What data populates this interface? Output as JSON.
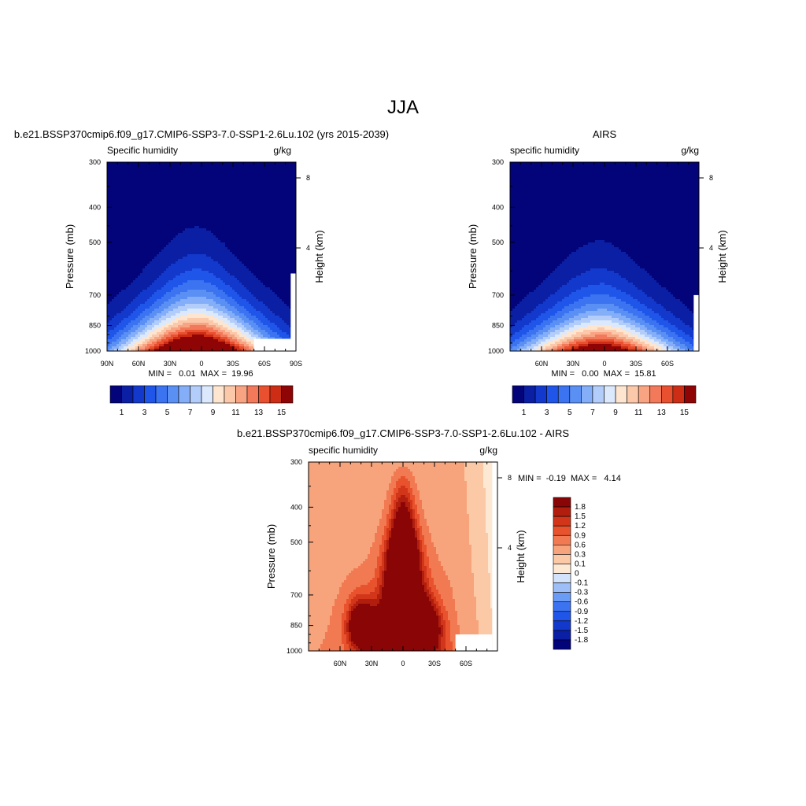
{
  "figure": {
    "title": "JJA"
  },
  "palettes": {
    "abs": [
      "#03037a",
      "#0a1fa3",
      "#1339cc",
      "#1f55e8",
      "#3b73f0",
      "#5a8ff4",
      "#84aef7",
      "#b3cdfa",
      "#dce9fc",
      "#fde5d0",
      "#fbc8aa",
      "#f8a482",
      "#f3795b",
      "#e9502f",
      "#cd2d14",
      "#8f0505"
    ],
    "diff": [
      "#03037a",
      "#0a1fa3",
      "#1339cc",
      "#1f55e8",
      "#3b73f0",
      "#6a9bf5",
      "#9ebef8",
      "#d2e3fb",
      "#fde8d4",
      "#fbc9a6",
      "#f7a47c",
      "#f27a52",
      "#e8532d",
      "#d2361a",
      "#b11e0e",
      "#8a0606"
    ]
  },
  "chart_data": [
    {
      "type": "contour",
      "title": "b.e21.BSSP370cmip6.f09_g17.CMIP6-SSP3-7.0-SSP1-2.6Lu.102 (yrs 2015-2039)",
      "field_label": "Specific humidity",
      "units": "g/kg",
      "ylabel": "Pressure (mb)",
      "y2label": "Height (km)",
      "x_ticks": [
        "90N",
        "60N",
        "30N",
        "0",
        "30S",
        "60S",
        "90S"
      ],
      "x_tick_values": [
        90,
        60,
        30,
        0,
        -30,
        -60,
        -90
      ],
      "x_range": [
        90,
        -90
      ],
      "y_ticks": [
        "300",
        "400",
        "500",
        "700",
        "850",
        "1000"
      ],
      "y_tick_values": [
        300,
        400,
        500,
        700,
        850,
        1000
      ],
      "y2_ticks": [
        "8",
        "4"
      ],
      "stats": "MIN =   0.01  MAX =  19.96",
      "levels": [
        1,
        2,
        3,
        4,
        5,
        6,
        7,
        8,
        9,
        10,
        11,
        12,
        13,
        14,
        15
      ],
      "colorbar_labels": [
        "1",
        "3",
        "5",
        "7",
        "9",
        "11",
        "13",
        "15"
      ],
      "missing_region": {
        "lat": [
          -50,
          -90
        ],
        "p": [
          925,
          1000
        ]
      },
      "missing_strip": {
        "lat": [
          -85,
          -90
        ],
        "p": [
          610,
          1000
        ]
      }
    },
    {
      "type": "contour",
      "title": "AIRS",
      "field_label": "specific humidity",
      "units": "g/kg",
      "ylabel": "Pressure (mb)",
      "y2label": "Height (km)",
      "x_ticks": [
        "60N",
        "30N",
        "0",
        "30S",
        "60S"
      ],
      "x_tick_values": [
        60,
        30,
        0,
        -30,
        -60
      ],
      "x_range": [
        90,
        -90
      ],
      "y_ticks": [
        "300",
        "400",
        "500",
        "700",
        "850",
        "1000"
      ],
      "y_tick_values": [
        300,
        400,
        500,
        700,
        850,
        1000
      ],
      "y2_ticks": [
        "8",
        "4"
      ],
      "stats": "MIN =   0.00  MAX =  15.81",
      "levels": [
        1,
        2,
        3,
        4,
        5,
        6,
        7,
        8,
        9,
        10,
        11,
        12,
        13,
        14,
        15
      ],
      "colorbar_labels": [
        "1",
        "3",
        "5",
        "7",
        "9",
        "11",
        "13",
        "15"
      ],
      "missing_strip": {
        "lat": [
          -85,
          -90
        ],
        "p": [
          700,
          1000
        ]
      }
    },
    {
      "type": "contour",
      "title": "b.e21.BSSP370cmip6.f09_g17.CMIP6-SSP3-7.0-SSP1-2.6Lu.102 - AIRS",
      "field_label": "specific humidity",
      "units": "g/kg",
      "ylabel": "Pressure (mb)",
      "y2label": "Height (km)",
      "x_ticks": [
        "60N",
        "30N",
        "0",
        "30S",
        "60S"
      ],
      "x_tick_values": [
        60,
        30,
        0,
        -30,
        -60
      ],
      "x_range": [
        90,
        -90
      ],
      "y_ticks": [
        "300",
        "400",
        "500",
        "700",
        "850",
        "1000"
      ],
      "y_tick_values": [
        300,
        400,
        500,
        700,
        850,
        1000
      ],
      "y2_ticks": [
        "8",
        "4"
      ],
      "stats": "MIN =  -0.19  MAX =   4.14",
      "levels": [
        -1.8,
        -1.5,
        -1.2,
        -0.9,
        -0.6,
        -0.3,
        -0.1,
        0,
        0.1,
        0.3,
        0.6,
        0.9,
        1.2,
        1.5,
        1.8
      ],
      "colorbar_labels": [
        "1.8",
        "1.5",
        "1.2",
        "0.9",
        "0.6",
        "0.3",
        "0.1",
        "0",
        "-0.1",
        "-0.3",
        "-0.6",
        "-0.9",
        "-1.2",
        "-1.5",
        "-1.8"
      ],
      "missing_region": {
        "lat": [
          -50,
          -85
        ],
        "p": [
          900,
          1000
        ]
      },
      "missing_strip": {
        "lat": [
          -85,
          -90
        ],
        "p": [
          300,
          1000
        ]
      }
    }
  ]
}
